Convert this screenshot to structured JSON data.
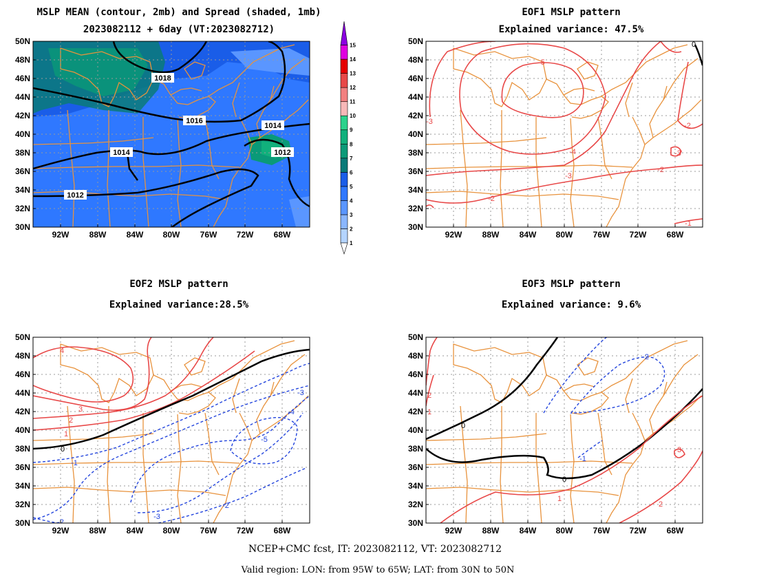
{
  "panels": {
    "mean": {
      "title_line1": "MSLP MEAN (contour, 2mb) and Spread (shaded, 1mb)",
      "title_line2": "2023082112 + 6day (VT:2023082712)",
      "contour_labels": [
        "1018",
        "1016",
        "1014",
        "1014",
        "1012",
        "1012"
      ]
    },
    "eof1": {
      "title_line1": "EOF1 MSLP pattern",
      "title_line2": "Explained variance: 47.5%",
      "contour_labels": [
        "-5",
        "-4",
        "-3",
        "-2",
        "-2",
        "-3",
        "-3",
        "-2",
        "-1",
        "0"
      ]
    },
    "eof2": {
      "title_line1": "EOF2 MSLP pattern",
      "title_line2": "Explained variance:28.5%",
      "contour_labels": [
        "4",
        "3",
        "2",
        "1",
        "0",
        "-1",
        "-2",
        "-3",
        "-3",
        "-4",
        "-5",
        "-2"
      ]
    },
    "eof3": {
      "title_line1": "EOF3 MSLP pattern",
      "title_line2": "Explained variance: 9.6%",
      "contour_labels": [
        "0",
        "0",
        "-1",
        "-2",
        "1",
        "2",
        "3",
        "1",
        "2"
      ]
    }
  },
  "axes": {
    "lat_labels": [
      "50N",
      "48N",
      "46N",
      "44N",
      "42N",
      "40N",
      "38N",
      "36N",
      "34N",
      "32N",
      "30N"
    ],
    "lon_labels": [
      "92W",
      "88W",
      "84W",
      "80W",
      "76W",
      "72W",
      "68W"
    ]
  },
  "colorbar": {
    "labels": [
      "1",
      "2",
      "3",
      "4",
      "5",
      "6",
      "7",
      "8",
      "9",
      "10",
      "11",
      "12",
      "13",
      "14",
      "15"
    ],
    "colors": [
      "#b4d4ff",
      "#8ab6ff",
      "#5a96ff",
      "#2f78ff",
      "#1a5de8",
      "#0a7a78",
      "#0a9a78",
      "#11b07c",
      "#2ad28c",
      "#f7b8b8",
      "#f28080",
      "#e84848",
      "#e60000",
      "#e000e0",
      "#8a00e0"
    ]
  },
  "footer": {
    "line1": "NCEP+CMC fcst, IT: 2023082112, VT: 2023082712",
    "line2": "Valid region: LON: from 95W to 65W; LAT: from 30N to 50N"
  },
  "colors": {
    "coastline": "#e8923c",
    "positive_contour": "#e84848",
    "negative_contour": "#2244dd",
    "zero_contour": "#000000"
  }
}
